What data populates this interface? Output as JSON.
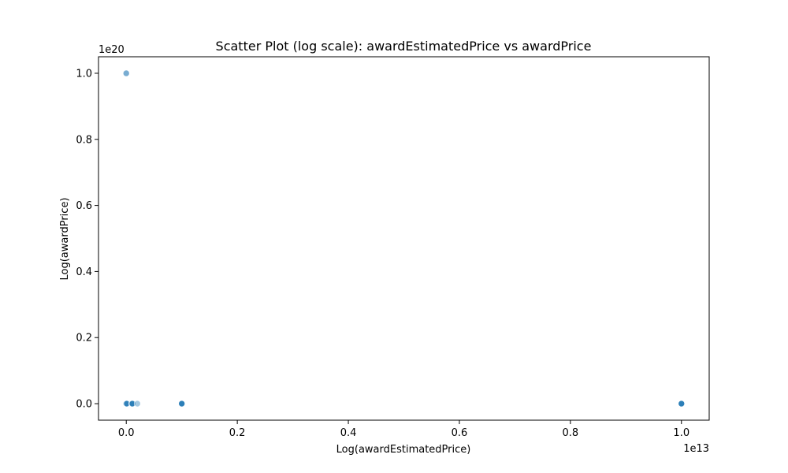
{
  "chart_data": {
    "type": "scatter",
    "title": "Scatter Plot (log scale): awardEstimatedPrice vs awardPrice",
    "xlabel": "Log(awardEstimatedPrice)",
    "ylabel": "Log(awardPrice)",
    "x_offset_text": "1e13",
    "y_offset_text": "1e20",
    "x_scale": 10000000000000.0,
    "y_scale": 1e+20,
    "xlim": [
      -0.05,
      1.05
    ],
    "ylim": [
      -0.05,
      1.05
    ],
    "x_ticks": [
      0.0,
      0.2,
      0.4,
      0.6,
      0.8,
      1.0
    ],
    "x_tick_labels": [
      "0.0",
      "0.2",
      "0.4",
      "0.6",
      "0.8",
      "1.0"
    ],
    "y_ticks": [
      0.0,
      0.2,
      0.4,
      0.6,
      0.8,
      1.0
    ],
    "y_tick_labels": [
      "0.0",
      "0.2",
      "0.4",
      "0.6",
      "0.8",
      "1.0"
    ],
    "grid": false,
    "legend": "none",
    "colors": {
      "point": "#1f77b4",
      "frame": "#000000"
    },
    "series": [
      {
        "points": [
          {
            "x": 0.0,
            "y": 1.0,
            "opacity": 0.6
          },
          {
            "x": 0.0,
            "y": 0.0,
            "opacity": 0.8
          },
          {
            "x": 0.001,
            "y": 0.0,
            "opacity": 0.6
          },
          {
            "x": 0.01,
            "y": 0.0,
            "opacity": 0.8
          },
          {
            "x": 0.011,
            "y": 0.0,
            "opacity": 0.7
          },
          {
            "x": 0.02,
            "y": 0.0,
            "opacity": 0.4
          },
          {
            "x": 0.1,
            "y": 0.0,
            "opacity": 0.8
          },
          {
            "x": 0.1,
            "y": 0.0,
            "opacity": 0.7
          },
          {
            "x": 1.0,
            "y": 0.0,
            "opacity": 0.8
          },
          {
            "x": 1.0,
            "y": 0.0,
            "opacity": 0.7
          }
        ]
      }
    ]
  }
}
